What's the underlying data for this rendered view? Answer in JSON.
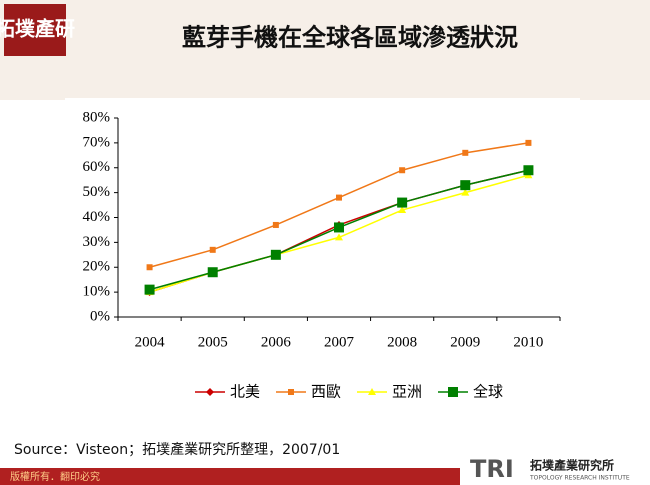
{
  "page": {
    "logo": "拓墣產研",
    "source": "Source：Visteon；拓墣產業研究所整理，2007/01",
    "footer": "版權所有．翻印必究",
    "brand": "TRI",
    "brand_name": "拓墣產業研究所",
    "brand_english": "TOPOLOGY RESEARCH INSTITUTE"
  },
  "chart_data": {
    "type": "line",
    "title": "藍芽手機在全球各區域滲透狀況",
    "categories": [
      "2004",
      "2005",
      "2006",
      "2007",
      "2008",
      "2009",
      "2010"
    ],
    "series": [
      {
        "name": "北美",
        "color": "#cc0000",
        "marker": "diamond",
        "values": [
          10,
          18,
          25,
          37,
          46,
          53,
          59
        ]
      },
      {
        "name": "西歐",
        "color": "#f07818",
        "marker": "square",
        "values": [
          20,
          27,
          37,
          48,
          59,
          66,
          70
        ]
      },
      {
        "name": "亞洲",
        "color": "#ffff00",
        "marker": "triangle",
        "values": [
          10,
          18,
          25,
          32,
          43,
          50,
          57
        ]
      },
      {
        "name": "全球",
        "color": "#008000",
        "marker": "square",
        "values": [
          11,
          18,
          25,
          36,
          46,
          53,
          59
        ]
      }
    ],
    "ylim": [
      0,
      80
    ],
    "yticks": [
      {
        "value": 0,
        "label": "0%"
      },
      {
        "value": 10,
        "label": "10%"
      },
      {
        "value": 20,
        "label": "20%"
      },
      {
        "value": 30,
        "label": "30%"
      },
      {
        "value": 40,
        "label": "40%"
      },
      {
        "value": 50,
        "label": "50%"
      },
      {
        "value": 60,
        "label": "60%"
      },
      {
        "value": 70,
        "label": "70%"
      },
      {
        "value": 80,
        "label": "80%"
      }
    ],
    "legend": "bottom",
    "grid": false
  }
}
